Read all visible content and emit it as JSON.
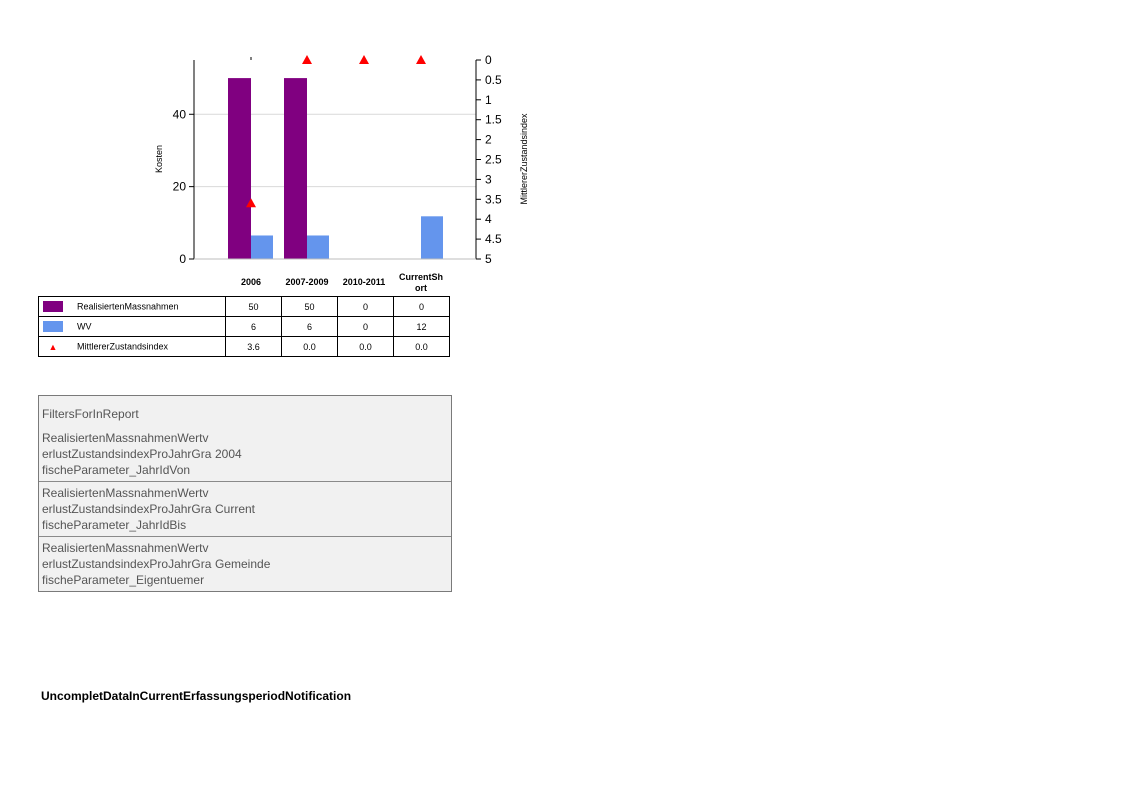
{
  "chart_data": {
    "type": "bar",
    "categories": [
      "2006",
      "2007-2009",
      "2010-2011",
      "CurrentShort"
    ],
    "category_labels_display": [
      "2006",
      "2007-2009",
      "2010-2011",
      "CurrentSh\nort"
    ],
    "series": [
      {
        "name": "RealisiertenMassnahmen",
        "type": "bar",
        "axis": "left",
        "color": "#800080",
        "values": [
          50,
          50,
          0,
          0
        ],
        "value_labels": [
          "50",
          "50",
          "0",
          "0"
        ]
      },
      {
        "name": "WV",
        "type": "bar",
        "axis": "left",
        "color": "#6495ed",
        "values": [
          6,
          6,
          0,
          12
        ],
        "plot_values": [
          6.5,
          6.5,
          0,
          11.8
        ],
        "value_labels": [
          "6",
          "6",
          "0",
          "12"
        ]
      },
      {
        "name": "MittlererZustandsindex",
        "type": "marker",
        "marker": "triangle",
        "axis": "right",
        "color": "#ff0000",
        "values": [
          3.6,
          0.0,
          0.0,
          0.0
        ],
        "value_labels": [
          "3.6",
          "0.0",
          "0.0",
          "0.0"
        ]
      }
    ],
    "ylabel": "Kosten",
    "ylabel_right": "MittlererZustandsindex",
    "ylim": [
      0,
      55
    ],
    "yticks": [
      "0",
      "20",
      "40"
    ],
    "ylim_right": [
      5,
      0
    ],
    "yticks_right": [
      "0",
      "0.5",
      "1",
      "1.5",
      "2",
      "2.5",
      "3",
      "3.5",
      "4",
      "4.5",
      "5"
    ],
    "grid": true,
    "legend": "table-below"
  },
  "filters": {
    "title": "FiltersForInReport",
    "rows": [
      {
        "name": "RealisiertenMassnahmenWertverlustZustandsindexProJahrGrafischeParameter_JahrIdVon",
        "value": "2004"
      },
      {
        "name": "RealisiertenMassnahmenWertverlustZustandsindexProJahrGrafischeParameter_JahrIdBis",
        "value": "Current"
      },
      {
        "name": "RealisiertenMassnahmenWertverlustZustandsindexProJahrGrafischeParameter_Eigentuemer",
        "value": "Gemeinde"
      }
    ]
  },
  "notification": "UncompletDataInCurrentErfassungsperiodNotification"
}
